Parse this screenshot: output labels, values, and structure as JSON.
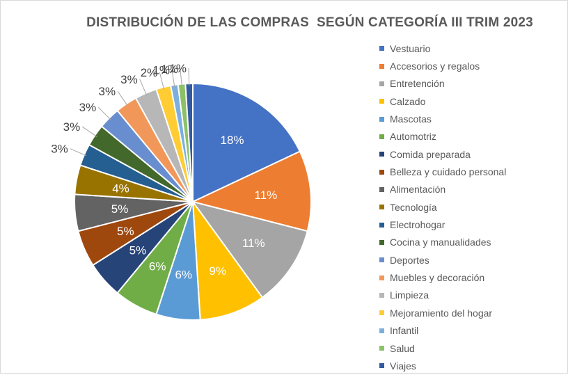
{
  "chart_data": {
    "type": "pie",
    "title": "DISTRIBUCIÓN DE LAS COMPRAS  SEGÚN CATEGORÍA III TRIM 2023",
    "legend_position": "right",
    "categories": [
      "Vestuario",
      "Accesorios y regalos",
      "Entretención",
      "Calzado",
      "Mascotas",
      "Automotriz",
      "Comida preparada",
      "Belleza y cuidado personal",
      "Alimentación",
      "Tecnología",
      "Electrohogar",
      "Cocina y manualidades",
      "Deportes",
      "Muebles y decoración",
      "Limpieza",
      "Mejoramiento del hogar",
      "Infantil",
      "Salud",
      "Viajes"
    ],
    "values": [
      18,
      11,
      11,
      9,
      6,
      6,
      5,
      5,
      5,
      4,
      3,
      3,
      3,
      3,
      3,
      2,
      1,
      1,
      1
    ],
    "labels": [
      "18%",
      "11%",
      "11%",
      "9%",
      "6%",
      "6%",
      "5%",
      "5%",
      "5%",
      "4%",
      "3%",
      "3%",
      "3%",
      "3%",
      "3%",
      "2%",
      "1%",
      "1%",
      "1%"
    ],
    "colors": [
      "#4472C4",
      "#ED7D31",
      "#A5A5A5",
      "#FFC000",
      "#5B9BD5",
      "#70AD47",
      "#264478",
      "#9E480E",
      "#636363",
      "#997300",
      "#255E91",
      "#43682B",
      "#698ED0",
      "#F1975A",
      "#B7B7B7",
      "#FFCD33",
      "#7CAFDD",
      "#8CC168",
      "#335AA1"
    ]
  }
}
